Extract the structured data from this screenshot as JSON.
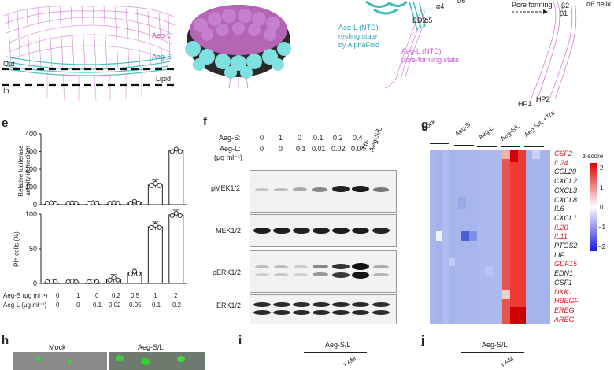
{
  "panel_top": {
    "labels": {
      "aeg_l": "Aeg-L",
      "aeg_s": "Aeg-S",
      "out": "Out",
      "lipid": "Lipid",
      "in": "In",
      "resting_state": [
        "Aeg-L (NTD)",
        "resting state",
        "by AlphaFold"
      ],
      "pore_state": [
        "Aeg-L (NTD)",
        "pore-forming state"
      ],
      "pore_forming": "Pore forming",
      "ed2": "ED2",
      "a4": "α4",
      "a5": "α5",
      "a6": "α6",
      "b2": "β2",
      "b1": "β1",
      "a6_helix": "α6 helix",
      "hp1": "HP1",
      "hp2": "HP2"
    }
  },
  "panel_e": {
    "label": "e",
    "top_ylabel": [
      "Relative luciferase",
      "activity in medium"
    ],
    "bottom_ylabel": "PI⁺ cells (%)",
    "row_label_s": "Aeg-S (μg ml⁻¹)",
    "row_label_l": "Aeg-L (μg ml⁻¹)",
    "aeg_s_values": [
      "0",
      "1",
      "0",
      "0.2",
      "0.5",
      "1",
      "2"
    ],
    "aeg_l_values": [
      "0",
      "0",
      "0.1",
      "0.02",
      "0.05",
      "0.1",
      "0.2"
    ],
    "top_ticks": [
      "0",
      "100",
      "200",
      "300",
      "400"
    ],
    "bottom_ticks": [
      "0",
      "50",
      "100"
    ]
  },
  "chart_data": [
    {
      "type": "bar",
      "ylabel": "Relative luciferase activity in medium",
      "categories": [
        "0/0",
        "1/0",
        "0/0.1",
        "0.2/0.02",
        "0.5/0.05",
        "1/0.1",
        "2/0.2"
      ],
      "values": [
        2,
        2,
        2,
        2,
        10,
        112,
        305
      ],
      "ylim": [
        0,
        400
      ]
    },
    {
      "type": "bar",
      "ylabel": "PI⁺ cells (%)",
      "categories": [
        "0/0",
        "1/0",
        "0/0.1",
        "0.2/0.02",
        "0.5/0.05",
        "1/0.1",
        "2/0.2"
      ],
      "values": [
        1,
        1,
        1,
        6,
        15,
        82,
        99
      ],
      "ylim": [
        0,
        100
      ]
    }
  ],
  "panel_f": {
    "label": "f",
    "row_s_label": "Aeg-S:",
    "row_l_label": "Aeg-L:",
    "unit": "(μg ml⁻¹)",
    "aeg_s": [
      "0",
      "1",
      "0",
      "0.1",
      "0.2",
      "0.4"
    ],
    "aeg_l": [
      "0",
      "0",
      "0.1",
      "0.01",
      "0.02",
      "0.04"
    ],
    "last_col": [
      "HI-",
      "Aeg-S/L"
    ],
    "blots": [
      "pMEK1/2",
      "MEK1/2",
      "pERK1/2",
      "ERK1/2"
    ]
  },
  "panel_g": {
    "label": "g",
    "columns": [
      "Mock",
      "Aeg-S",
      "Aeg-L",
      "Aeg-S/L",
      "Aeg-S/L +Tra"
    ],
    "genes": [
      {
        "name": "CSF2",
        "color": "#d62020"
      },
      {
        "name": "IL24",
        "color": "#d62020"
      },
      {
        "name": "CCL20",
        "color": "#222222"
      },
      {
        "name": "CXCL2",
        "color": "#222222"
      },
      {
        "name": "CXCL3",
        "color": "#222222"
      },
      {
        "name": "CXCL8",
        "color": "#222222"
      },
      {
        "name": "IL6",
        "color": "#222222"
      },
      {
        "name": "CXCL1",
        "color": "#222222"
      },
      {
        "name": "IL20",
        "color": "#d62020"
      },
      {
        "name": "IL11",
        "color": "#d62020"
      },
      {
        "name": "PTGS2",
        "color": "#222222"
      },
      {
        "name": "LIF",
        "color": "#222222"
      },
      {
        "name": "GDF15",
        "color": "#d62020"
      },
      {
        "name": "EDN1",
        "color": "#222222"
      },
      {
        "name": "CSF1",
        "color": "#222222"
      },
      {
        "name": "DKK1",
        "color": "#d62020"
      },
      {
        "name": "HBEGF",
        "color": "#d62020"
      },
      {
        "name": "EREG",
        "color": "#d62020"
      },
      {
        "name": "AREG",
        "color": "#d62020"
      }
    ],
    "scale_title": "z-score",
    "scale_ticks": [
      "2",
      "1",
      "0",
      "−1",
      "−2"
    ]
  },
  "panel_h": {
    "label": "h",
    "captions": [
      "Mock",
      "Aeg-S/L"
    ]
  },
  "panel_i": {
    "label": "i",
    "caption": "Aeg-S/L",
    "sub": "I-AM"
  },
  "panel_j": {
    "label": "j",
    "caption": "Aeg-S/L",
    "sub": "I-AM"
  }
}
